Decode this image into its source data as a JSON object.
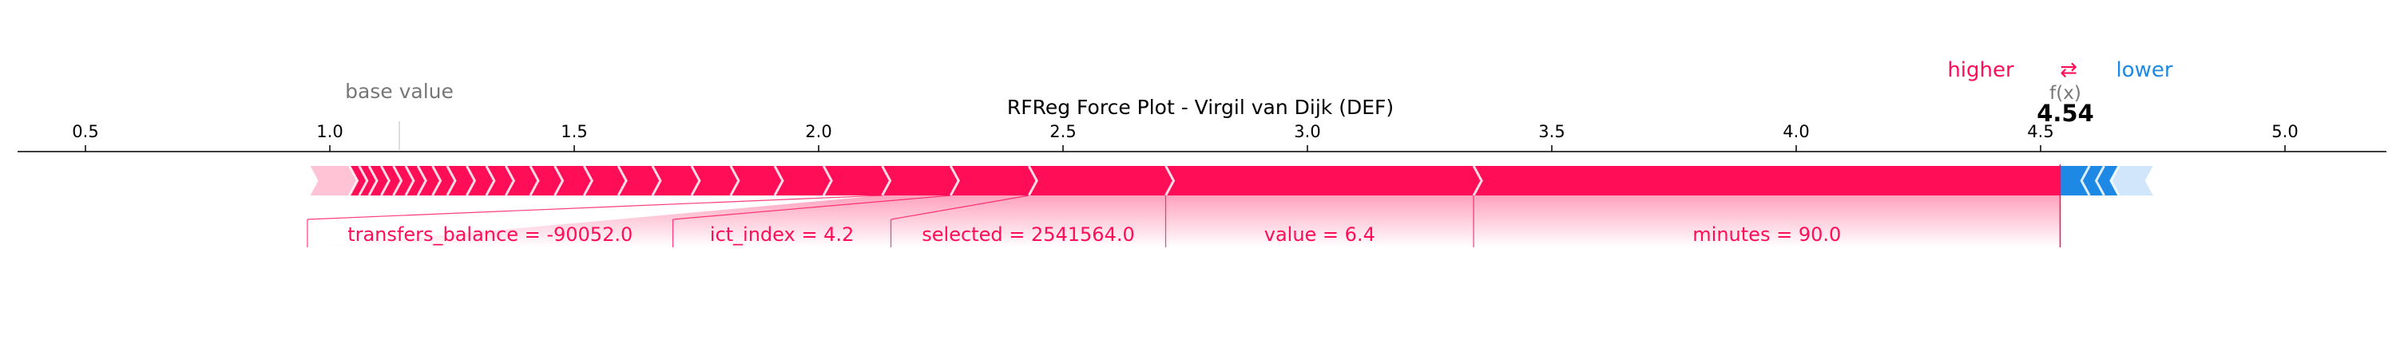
{
  "chart_data": {
    "type": "force",
    "title": "RFReg Force Plot - Virgil van Dijk (DEF)",
    "base_value": 1.14,
    "base_label": "base value",
    "output_value": 4.54,
    "output_label": "f(x)",
    "output_text": "4.54",
    "xlim": [
      0.36,
      5.2
    ],
    "ticks": [
      "0.5",
      "1.0",
      "1.5",
      "2.0",
      "2.5",
      "3.0",
      "3.5",
      "4.0",
      "4.5",
      "5.0"
    ],
    "legend": {
      "higher": "higher",
      "lower": "lower",
      "arrow": "⇄"
    },
    "positive_color": "#ff0d57",
    "negative_color": "#1e88e5",
    "positive": [
      {
        "label": "minutes = 90.0",
        "start": 3.34,
        "end": 4.54
      },
      {
        "label": "value = 6.4",
        "start": 2.71,
        "end": 3.34
      },
      {
        "label": "selected = 2541564.0",
        "start": 2.43,
        "end": 2.71
      },
      {
        "label": "ict_index = 4.2",
        "start": 2.27,
        "end": 2.43
      },
      {
        "label": "transfers_balance = -90052.0",
        "start": 2.13,
        "end": 2.27
      },
      {
        "label": "",
        "start": 2.01,
        "end": 2.13
      },
      {
        "label": "",
        "start": 1.91,
        "end": 2.01
      },
      {
        "label": "",
        "start": 1.82,
        "end": 1.91
      },
      {
        "label": "",
        "start": 1.74,
        "end": 1.82
      },
      {
        "label": "",
        "start": 1.66,
        "end": 1.74
      },
      {
        "label": "",
        "start": 1.59,
        "end": 1.66
      },
      {
        "label": "",
        "start": 1.52,
        "end": 1.59
      },
      {
        "label": "",
        "start": 1.46,
        "end": 1.52
      },
      {
        "label": "",
        "start": 1.41,
        "end": 1.46
      },
      {
        "label": "",
        "start": 1.36,
        "end": 1.41
      },
      {
        "label": "",
        "start": 1.32,
        "end": 1.36
      },
      {
        "label": "",
        "start": 1.28,
        "end": 1.32
      },
      {
        "label": "",
        "start": 1.24,
        "end": 1.28
      },
      {
        "label": "",
        "start": 1.21,
        "end": 1.24
      },
      {
        "label": "",
        "start": 1.18,
        "end": 1.21
      },
      {
        "label": "",
        "start": 1.155,
        "end": 1.18
      },
      {
        "label": "",
        "start": 1.13,
        "end": 1.155
      },
      {
        "label": "",
        "start": 1.105,
        "end": 1.13
      },
      {
        "label": "",
        "start": 1.08,
        "end": 1.105
      },
      {
        "label": "",
        "start": 1.06,
        "end": 1.08
      },
      {
        "label": "",
        "start": 1.04,
        "end": 1.06
      },
      {
        "label": "",
        "start": 0.96,
        "end": 1.04
      }
    ],
    "negative": [
      {
        "label": "",
        "start": 4.54,
        "end": 4.6
      },
      {
        "label": "",
        "start": 4.6,
        "end": 4.63
      },
      {
        "label": "",
        "start": 4.63,
        "end": 4.66
      },
      {
        "label": "",
        "start": 4.66,
        "end": 4.73
      }
    ]
  }
}
